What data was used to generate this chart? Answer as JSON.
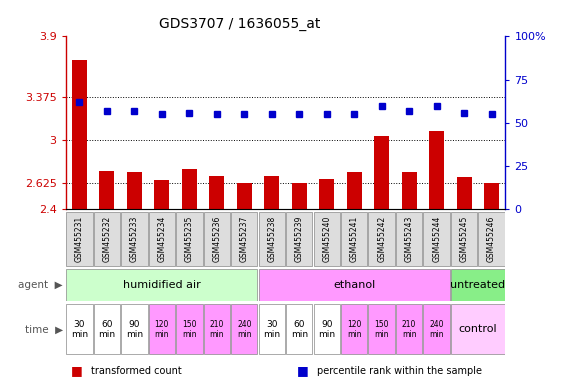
{
  "title": "GDS3707 / 1636055_at",
  "samples": [
    "GSM455231",
    "GSM455232",
    "GSM455233",
    "GSM455234",
    "GSM455235",
    "GSM455236",
    "GSM455237",
    "GSM455238",
    "GSM455239",
    "GSM455240",
    "GSM455241",
    "GSM455242",
    "GSM455243",
    "GSM455244",
    "GSM455245",
    "GSM455246"
  ],
  "bar_values": [
    3.7,
    2.73,
    2.72,
    2.65,
    2.75,
    2.69,
    2.63,
    2.69,
    2.63,
    2.66,
    2.72,
    3.04,
    2.72,
    3.08,
    2.68,
    2.63
  ],
  "dot_values": [
    62,
    57,
    57,
    55,
    56,
    55,
    55,
    55,
    55,
    55,
    55,
    60,
    57,
    60,
    56,
    55
  ],
  "ylim_left": [
    2.4,
    3.9
  ],
  "ylim_right": [
    0,
    100
  ],
  "yticks_left": [
    2.4,
    2.625,
    3.0,
    3.375,
    3.9
  ],
  "yticks_right": [
    0,
    25,
    50,
    75,
    100
  ],
  "ytick_labels_left": [
    "2.4",
    "2.625",
    "3",
    "3.375",
    "3.9"
  ],
  "ytick_labels_right": [
    "0",
    "25",
    "50",
    "75",
    "100%"
  ],
  "hlines": [
    2.625,
    3.0,
    3.375
  ],
  "bar_color": "#cc0000",
  "dot_color": "#0000cc",
  "bar_width": 0.55,
  "agent_groups": [
    {
      "label": "humidified air",
      "start": 0,
      "end": 7,
      "color": "#ccffcc"
    },
    {
      "label": "ethanol",
      "start": 7,
      "end": 14,
      "color": "#ff99ff"
    },
    {
      "label": "untreated",
      "start": 14,
      "end": 16,
      "color": "#88ee88"
    }
  ],
  "time_labels": [
    "30\nmin",
    "60\nmin",
    "90\nmin",
    "120\nmin",
    "150\nmin",
    "210\nmin",
    "240\nmin",
    "30\nmin",
    "60\nmin",
    "90\nmin",
    "120\nmin",
    "150\nmin",
    "210\nmin",
    "240\nmin"
  ],
  "time_colors": [
    "#ffffff",
    "#ffffff",
    "#ffffff",
    "#ff99ff",
    "#ff99ff",
    "#ff99ff",
    "#ff99ff",
    "#ffffff",
    "#ffffff",
    "#ffffff",
    "#ff99ff",
    "#ff99ff",
    "#ff99ff",
    "#ff99ff"
  ],
  "control_label": "control",
  "control_color": "#ffccff",
  "legend_items": [
    {
      "color": "#cc0000",
      "label": "transformed count"
    },
    {
      "color": "#0000cc",
      "label": "percentile rank within the sample"
    }
  ],
  "agent_label": "agent",
  "time_label": "time",
  "tick_fontsize": 8,
  "title_fontsize": 10,
  "sample_box_color": "#dddddd",
  "sample_box_edge": "#888888"
}
